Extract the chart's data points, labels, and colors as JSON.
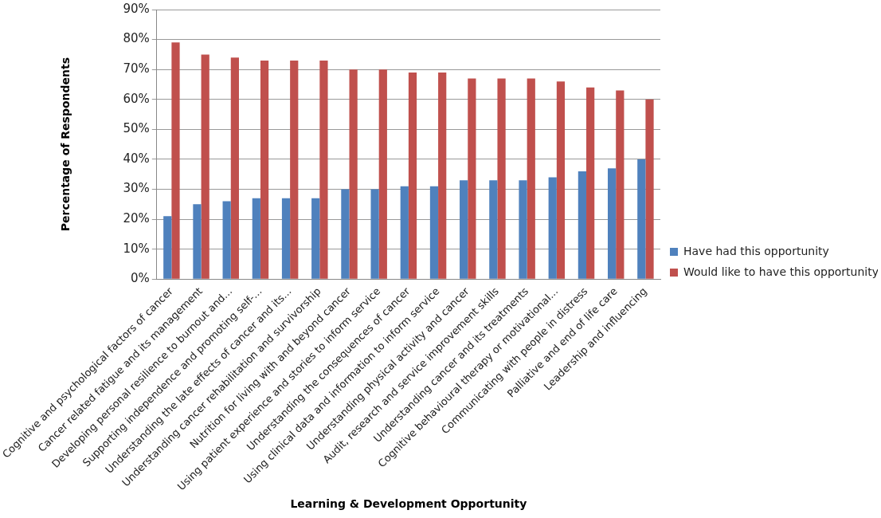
{
  "chart_data": {
    "type": "bar",
    "xlabel": "Learning & Development Opportunity",
    "ylabel": "Percentage of Respondents",
    "categories": [
      "Cognitive and psychological factors of cancer",
      "Cancer related fatigue and its management",
      "Developing personal resilience to burnout and...",
      "Supporting independence and promoting self-...",
      "Understanding the late effects of cancer and its...",
      "Understanding cancer rehabilitation and survivorship",
      "Nutrition for living with and beyond cancer",
      "Using patient experience and stories to inform service",
      "Understanding the consequences of cancer",
      "Using clinical data and information to inform service",
      "Understanding physical activity and cancer",
      "Audit, research and service improvement skills",
      "Understanding cancer and its treatments",
      "Cognitive behavioural therapy or motivational...",
      "Communicating with people in distress",
      "Palliative and end of life care",
      "Leadership and influencing"
    ],
    "series": [
      {
        "name": "Have had this opportunity",
        "color": "#4f81bd",
        "values": [
          21,
          25,
          26,
          27,
          27,
          27,
          30,
          30,
          31,
          31,
          33,
          33,
          33,
          34,
          36,
          37,
          40
        ]
      },
      {
        "name": "Would like to have this opportunity",
        "color": "#c0504d",
        "values": [
          79,
          75,
          74,
          73,
          73,
          73,
          70,
          70,
          69,
          69,
          67,
          67,
          67,
          66,
          64,
          63,
          60
        ]
      }
    ],
    "ylim": [
      0,
      90
    ],
    "yticks": [
      {
        "value": 0,
        "label": "0%"
      },
      {
        "value": 10,
        "label": "10%"
      },
      {
        "value": 20,
        "label": "20%"
      },
      {
        "value": 30,
        "label": "30%"
      },
      {
        "value": 40,
        "label": "40%"
      },
      {
        "value": 50,
        "label": "50%"
      },
      {
        "value": 60,
        "label": "60%"
      },
      {
        "value": 70,
        "label": "70%"
      },
      {
        "value": 80,
        "label": "80%"
      },
      {
        "value": 90,
        "label": "90%"
      }
    ],
    "grid": "y",
    "legend": "right"
  }
}
